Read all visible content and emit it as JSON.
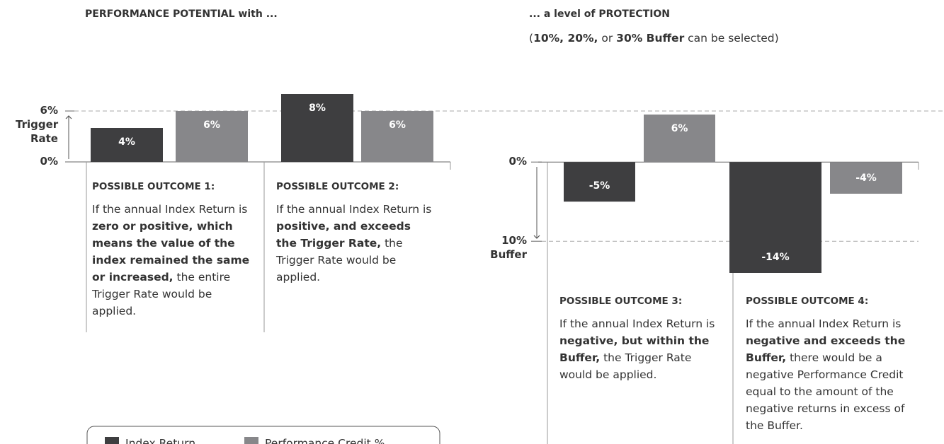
{
  "chart_data": [
    {
      "type": "bar",
      "title": "PERFORMANCE POTENTIAL with ...",
      "categories": [
        "POSSIBLE OUTCOME 1:",
        "POSSIBLE OUTCOME 2:"
      ],
      "series": [
        {
          "name": "Index Return",
          "color": "#3e3e40",
          "values": [
            4,
            8
          ],
          "value_labels": [
            "4%",
            "8%"
          ]
        },
        {
          "name": "Performance Credit %",
          "color": "#87878a",
          "values": [
            6,
            6
          ],
          "value_labels": [
            "6%",
            "6%"
          ]
        }
      ],
      "ylim": [
        0,
        8
      ],
      "yticks": [
        {
          "value": 0,
          "label": "0%"
        },
        {
          "value": 6,
          "label": "6%"
        }
      ],
      "reference": {
        "value": 6,
        "label": "Trigger Rate"
      },
      "descriptions": [
        [
          {
            "text": "If the annual Index Return is ",
            "bold": false
          },
          {
            "text": "zero or positive, which means the value of the index remained the same or increased,",
            "bold": true
          },
          {
            "text": " the entire Trigger Rate would be applied.",
            "bold": false
          }
        ],
        [
          {
            "text": "If the annual Index Return is ",
            "bold": false
          },
          {
            "text": "positive, and exceeds the Trigger Rate,",
            "bold": true
          },
          {
            "text": " the Trigger Rate would be applied.",
            "bold": false
          }
        ]
      ]
    },
    {
      "type": "bar",
      "title": "... a level of PROTECTION",
      "subtitle": [
        {
          "text": "(",
          "bold": false
        },
        {
          "text": "10%, 20%,",
          "bold": true
        },
        {
          "text": " or ",
          "bold": false
        },
        {
          "text": "30% Buffer",
          "bold": true
        },
        {
          "text": " can be selected)",
          "bold": false
        }
      ],
      "categories": [
        "POSSIBLE OUTCOME 3:",
        "POSSIBLE OUTCOME 4:"
      ],
      "series": [
        {
          "color": "#3e3e40",
          "values": [
            -5,
            -14
          ],
          "value_labels": [
            "-5%",
            "-14%"
          ]
        },
        {
          "color": "#87878a",
          "values": [
            6,
            -4
          ],
          "value_labels": [
            "6%",
            "-4%"
          ]
        }
      ],
      "ylim": [
        -14,
        6
      ],
      "yticks": [
        {
          "value": 0,
          "label": "0%"
        },
        {
          "value": -10,
          "label": "10%"
        }
      ],
      "reference": {
        "value": -10,
        "label": "Buffer"
      },
      "descriptions": [
        [
          {
            "text": "If the annual Index Return is ",
            "bold": false
          },
          {
            "text": "negative, but within the Buffer,",
            "bold": true
          },
          {
            "text": " the Trigger Rate would be applied.",
            "bold": false
          }
        ],
        [
          {
            "text": "If the annual Index Return is ",
            "bold": false
          },
          {
            "text": "negative and exceeds the Buffer,",
            "bold": true
          },
          {
            "text": " there would be a negative Performance Credit equal to the amount of the negative returns in excess of the Buffer.",
            "bold": false
          }
        ]
      ]
    }
  ]
}
